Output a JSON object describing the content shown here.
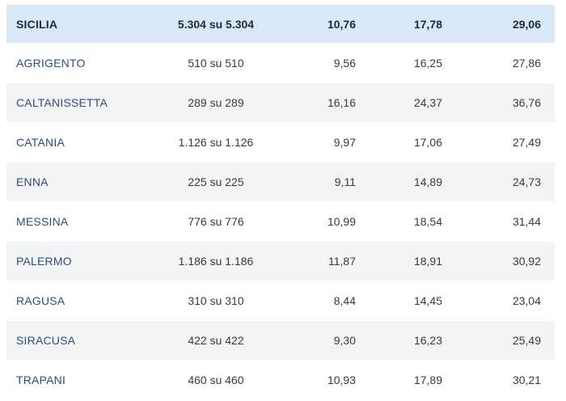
{
  "header": {
    "name": "SICILIA",
    "count": "5.304 su 5.304",
    "v1": "10,76",
    "v2": "17,78",
    "v3": "29,06"
  },
  "rows": [
    {
      "name": "AGRIGENTO",
      "count": "510 su 510",
      "v1": "9,56",
      "v2": "16,25",
      "v3": "27,86"
    },
    {
      "name": "CALTANISSETTA",
      "count": "289 su 289",
      "v1": "16,16",
      "v2": "24,37",
      "v3": "36,76"
    },
    {
      "name": "CATANIA",
      "count": "1.126 su 1.126",
      "v1": "9,97",
      "v2": "17,06",
      "v3": "27,49"
    },
    {
      "name": "ENNA",
      "count": "225 su 225",
      "v1": "9,11",
      "v2": "14,89",
      "v3": "24,73"
    },
    {
      "name": "MESSINA",
      "count": "776 su 776",
      "v1": "10,99",
      "v2": "18,54",
      "v3": "31,44"
    },
    {
      "name": "PALERMO",
      "count": "1.186 su 1.186",
      "v1": "11,87",
      "v2": "18,91",
      "v3": "30,92"
    },
    {
      "name": "RAGUSA",
      "count": "310 su 310",
      "v1": "8,44",
      "v2": "14,45",
      "v3": "23,04"
    },
    {
      "name": "SIRACUSA",
      "count": "422 su 422",
      "v1": "9,30",
      "v2": "16,23",
      "v3": "25,49"
    },
    {
      "name": "TRAPANI",
      "count": "460 su 460",
      "v1": "10,93",
      "v2": "17,89",
      "v3": "30,21"
    }
  ]
}
